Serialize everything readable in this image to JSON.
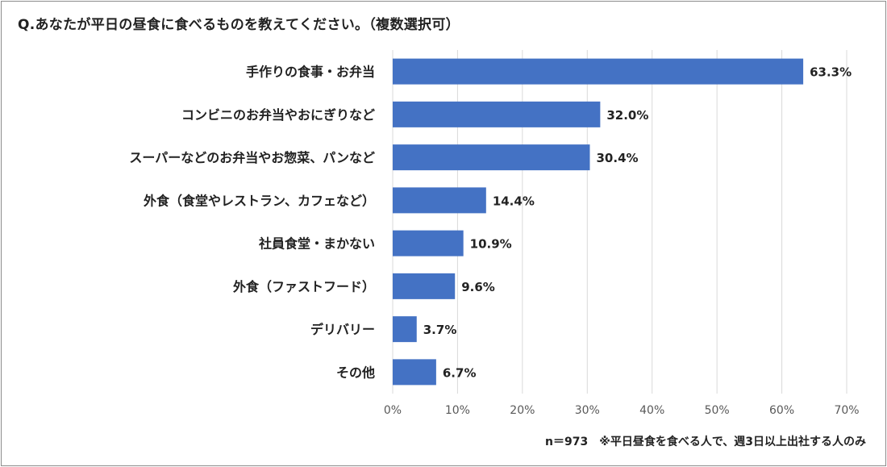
{
  "title": "Q.あなたが平日の昼食に食べるものを教えてください。（複数選択可）",
  "footnote": "n＝973　※平日昼食を食べる人で、週3日以上出社する人のみ",
  "colors": {
    "bar": "#4472c4",
    "grid": "#d9d9d9",
    "text": "#222222",
    "axis_text": "#595959"
  },
  "chart_data": {
    "type": "bar",
    "orientation": "horizontal",
    "title": "",
    "xlabel": "",
    "ylabel": "",
    "categories": [
      "手作りの食事・お弁当",
      "コンビニのお弁当やおにぎりなど",
      "スーパーなどのお弁当やお惣菜、パンなど",
      "外食（食堂やレストラン、カフェなど）",
      "社員食堂・まかない",
      "外食（ファストフード）",
      "デリバリー",
      "その他"
    ],
    "values": [
      63.3,
      32.0,
      30.4,
      14.4,
      10.9,
      9.6,
      3.7,
      6.7
    ],
    "data_labels": [
      "63.3%",
      "32.0%",
      "30.4%",
      "14.4%",
      "10.9%",
      "9.6%",
      "3.7%",
      "6.7%"
    ],
    "xlim": [
      0,
      70
    ],
    "x_ticks": [
      0,
      10,
      20,
      30,
      40,
      50,
      60,
      70
    ],
    "x_tick_labels": [
      "0%",
      "10%",
      "20%",
      "30%",
      "40%",
      "50%",
      "60%",
      "70%"
    ],
    "grid": true,
    "legend": "none"
  }
}
